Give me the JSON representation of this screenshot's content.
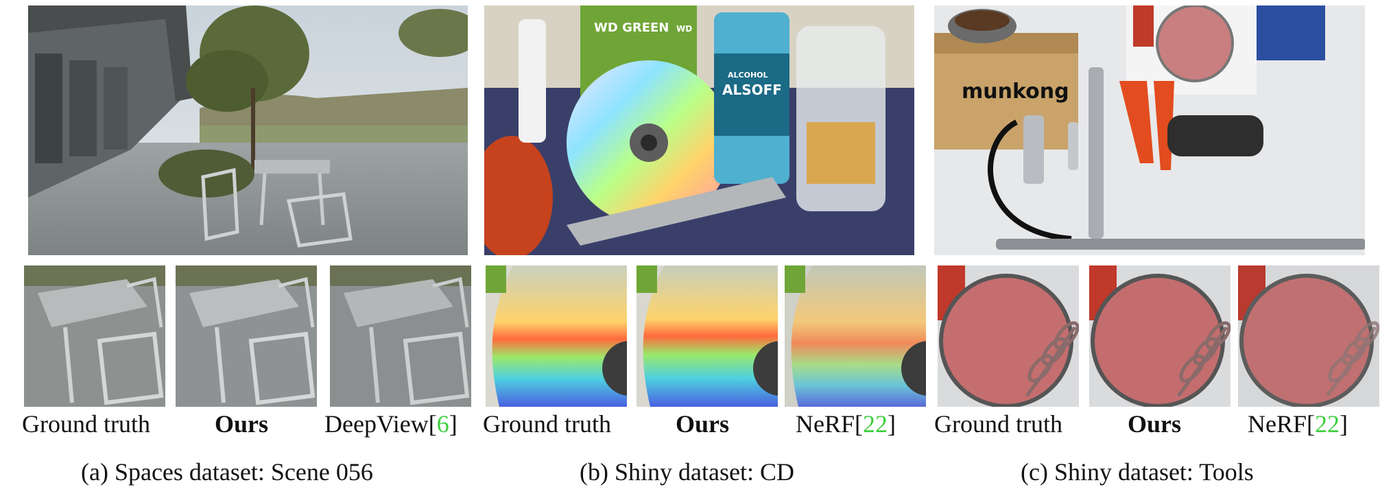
{
  "groups": [
    {
      "labels": [
        "Ground truth",
        "Ours",
        "DeepView["
      ],
      "cite": "6",
      "caption": "(a) Spaces dataset: Scene 056"
    },
    {
      "labels": [
        "Ground truth",
        "Ours",
        "NeRF["
      ],
      "cite": "22",
      "caption": "(b) Shiny dataset: CD"
    },
    {
      "labels": [
        "Ground truth",
        "Ours",
        "NeRF["
      ],
      "cite": "22",
      "caption": "(c) Shiny dataset: Tools"
    }
  ],
  "scene_text": {
    "wd_label": "WD GREEN",
    "wd_logo": "WD",
    "alcohol_top": "ALCOHOL",
    "alcohol_brand": "ALSOFF",
    "box_brand": "munkong"
  },
  "colors": {
    "citation": "#3fcf3f"
  }
}
